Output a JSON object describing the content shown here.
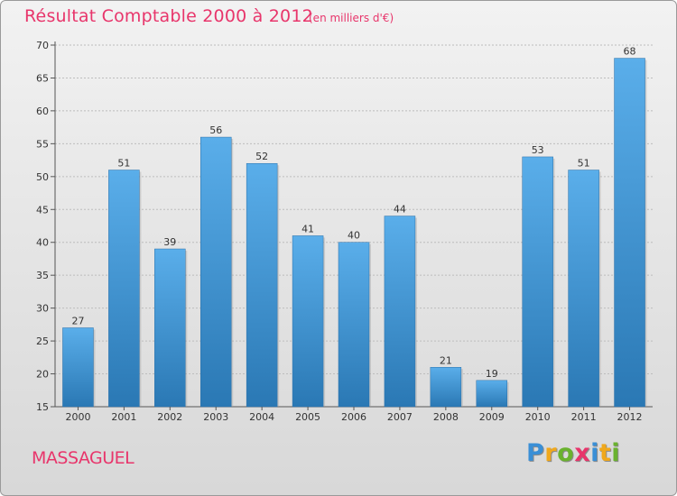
{
  "chart_data": {
    "type": "bar",
    "title": "Résultat Comptable 2000 à 2012",
    "subtitle": "(en milliers d'€)",
    "categories": [
      "2000",
      "2001",
      "2002",
      "2003",
      "2004",
      "2005",
      "2006",
      "2007",
      "2008",
      "2009",
      "2010",
      "2011",
      "2012"
    ],
    "values": [
      27,
      51,
      39,
      56,
      52,
      41,
      40,
      44,
      21,
      19,
      53,
      51,
      68
    ],
    "ylim": [
      15,
      70
    ],
    "yticks": [
      15,
      20,
      25,
      30,
      35,
      40,
      45,
      50,
      55,
      60,
      65,
      70
    ],
    "grid": true,
    "bar_color_top": "#5aaeea",
    "bar_color_bottom": "#2a78b4"
  },
  "commune": "MASSAGUEL",
  "brand": {
    "letters": [
      "P",
      "r",
      "o",
      "x",
      "i",
      "t",
      "i"
    ],
    "colors": [
      "#3a8fd6",
      "#f0a81c",
      "#6ab22e",
      "#e8356b",
      "#3a8fd6",
      "#f0a81c",
      "#6ab22e"
    ]
  }
}
